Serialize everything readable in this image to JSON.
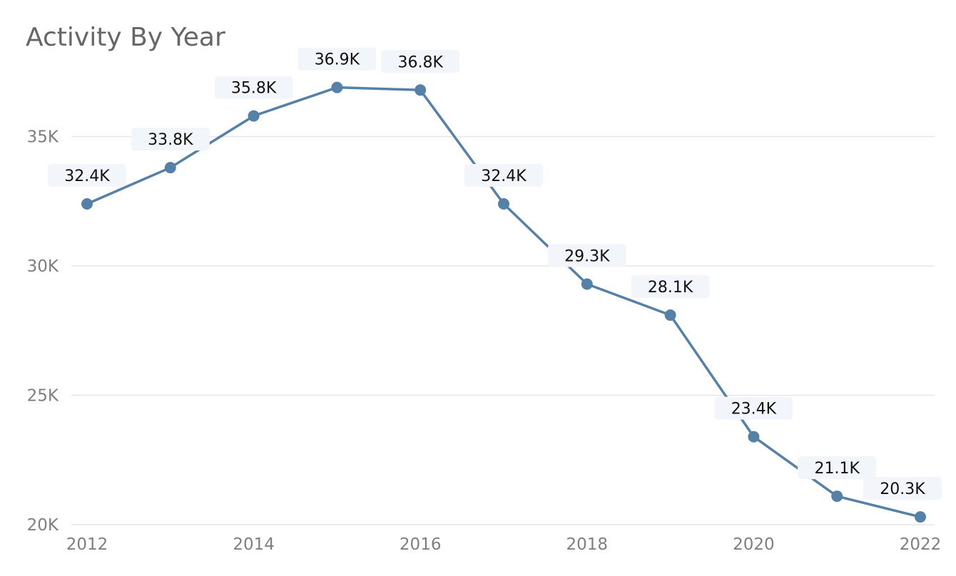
{
  "chart_data": {
    "type": "line",
    "title": "Activity By Year",
    "xlabel": "",
    "ylabel": "",
    "x": [
      2012,
      2013,
      2014,
      2015,
      2016,
      2017,
      2018,
      2019,
      2020,
      2021,
      2022
    ],
    "values": [
      32400,
      33800,
      35800,
      36900,
      36800,
      32400,
      29300,
      28100,
      23400,
      21100,
      20300
    ],
    "data_labels": [
      "32.4K",
      "33.8K",
      "35.8K",
      "36.9K",
      "36.8K",
      "32.4K",
      "29.3K",
      "28.1K",
      "23.4K",
      "21.1K",
      "20.3K"
    ],
    "x_ticks": [
      "2012",
      "2014",
      "2016",
      "2018",
      "2020",
      "2022"
    ],
    "y_ticks": [
      "20K",
      "25K",
      "30K",
      "35K"
    ],
    "y_tick_values": [
      20000,
      25000,
      30000,
      35000
    ],
    "ylim": [
      20000,
      37800
    ],
    "xlim": [
      2012,
      2022
    ],
    "grid": true,
    "legend": "none",
    "colors": {
      "line": "#5580a8",
      "grid": "#e6e6e6",
      "tick_text": "#7f7f7f",
      "label_bg": "#f2f6fa",
      "title": "#666666"
    }
  }
}
